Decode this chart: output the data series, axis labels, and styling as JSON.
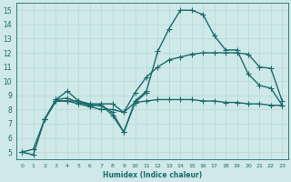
{
  "xlabel": "Humidex (Indice chaleur)",
  "xlim": [
    -0.5,
    23.5
  ],
  "ylim": [
    4.5,
    15.5
  ],
  "xticks": [
    0,
    1,
    2,
    3,
    4,
    5,
    6,
    7,
    8,
    9,
    10,
    11,
    12,
    13,
    14,
    15,
    16,
    17,
    18,
    19,
    20,
    21,
    22,
    23
  ],
  "yticks": [
    5,
    6,
    7,
    8,
    9,
    10,
    11,
    12,
    13,
    14,
    15
  ],
  "bg_color": "#cfe8e8",
  "line_color": "#1a6b6b",
  "grid_color": "#b8d8d8",
  "lines": [
    {
      "x": [
        0,
        1,
        2,
        3,
        4,
        5,
        6,
        7,
        8,
        9,
        10,
        11,
        12,
        13,
        14,
        15,
        16,
        17,
        18,
        19,
        20,
        21,
        22,
        23
      ],
      "y": [
        5.0,
        4.8,
        7.3,
        8.7,
        9.3,
        8.6,
        8.3,
        8.3,
        7.8,
        6.4,
        8.6,
        9.3,
        12.1,
        13.7,
        15.0,
        15.0,
        14.7,
        13.2,
        12.2,
        12.2,
        10.5,
        9.7,
        9.5,
        8.3
      ],
      "marker": "+",
      "markersize": 4,
      "linewidth": 1.0,
      "linestyle": "-"
    },
    {
      "x": [
        2,
        3,
        4,
        5,
        6,
        7,
        8,
        9,
        10,
        11,
        12,
        13,
        14,
        15,
        16,
        17,
        18,
        19,
        20,
        21,
        22,
        23
      ],
      "y": [
        7.3,
        8.6,
        8.6,
        8.4,
        8.2,
        8.0,
        8.0,
        7.8,
        8.5,
        8.6,
        8.7,
        8.7,
        8.7,
        8.7,
        8.6,
        8.6,
        8.5,
        8.5,
        8.4,
        8.4,
        8.3,
        8.3
      ],
      "marker": "+",
      "markersize": 4,
      "linewidth": 1.0,
      "linestyle": "-"
    },
    {
      "x": [
        0,
        1,
        2,
        3,
        4,
        5,
        6,
        7,
        8,
        9,
        10,
        11,
        12,
        13,
        14,
        15,
        16,
        17,
        18,
        19,
        20,
        21,
        22,
        23
      ],
      "y": [
        5.0,
        5.2,
        7.3,
        8.6,
        8.6,
        8.6,
        8.4,
        8.4,
        8.4,
        7.8,
        9.2,
        10.3,
        11.0,
        11.5,
        11.7,
        11.9,
        12.0,
        12.0,
        12.0,
        12.0,
        11.9,
        11.0,
        10.9,
        8.6
      ],
      "marker": "+",
      "markersize": 4,
      "linewidth": 1.0,
      "linestyle": "-"
    },
    {
      "x": [
        2,
        3,
        4,
        5,
        6,
        7,
        8,
        9,
        10,
        11
      ],
      "y": [
        7.3,
        8.7,
        8.8,
        8.5,
        8.3,
        8.3,
        7.6,
        6.4,
        8.5,
        9.2
      ],
      "marker": "+",
      "markersize": 4,
      "linewidth": 1.0,
      "linestyle": "-"
    }
  ]
}
